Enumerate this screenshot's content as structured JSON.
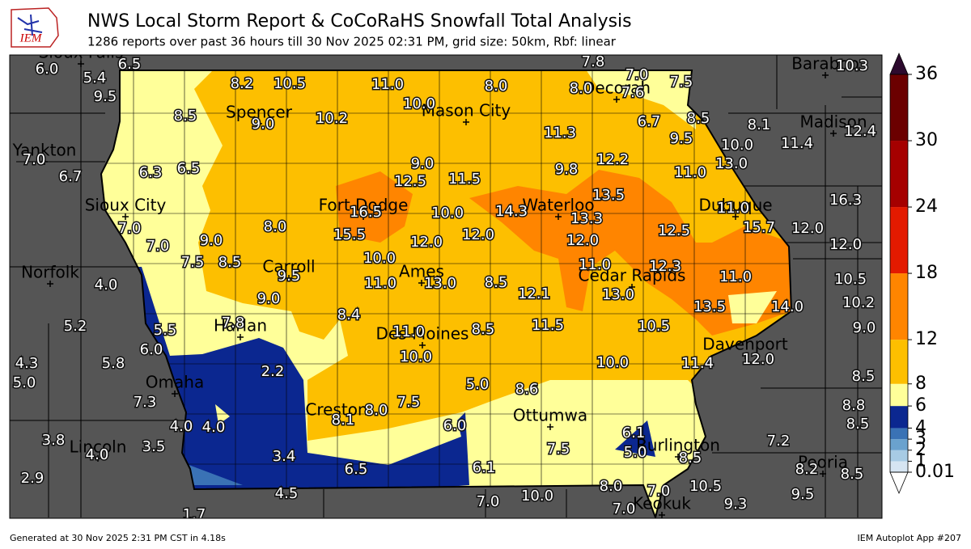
{
  "header": {
    "logo_text": "IEM",
    "title": "NWS Local Storm Report & CoCoRaHS Snowfall Total Analysis",
    "subtitle": "1286 reports over past 36 hours till 30 Nov 2025 02:31 PM, grid size: 50km, Rbf: linear"
  },
  "map": {
    "cities": [
      "Sioux Falls",
      "Decorah",
      "Baraboo",
      "Spencer",
      "Mason City",
      "Madison",
      "Yankton",
      "Sioux City",
      "Fort Dodge",
      "Waterloo",
      "Dubuque",
      "Norfolk",
      "Carroll",
      "Ames",
      "Cedar Rapids",
      "Harlan",
      "Des Moines",
      "Davenport",
      "Omaha",
      "Creston",
      "Ottumwa",
      "Burlington",
      "Lincoln",
      "Peoria",
      "Keokuk"
    ],
    "values": [
      6.0,
      6.5,
      5.4,
      9.5,
      8.2,
      10.5,
      11.0,
      8.0,
      7.8,
      7.0,
      8.0,
      7.6,
      7.5,
      10.3,
      8.5,
      9.0,
      10.2,
      10.0,
      11.3,
      6.7,
      8.5,
      9.5,
      8.1,
      10.0,
      11.4,
      12.4,
      7.0,
      6.7,
      6.3,
      6.5,
      9.0,
      12.5,
      11.5,
      9.8,
      12.2,
      11.0,
      13.0,
      16.3,
      16.5,
      10.0,
      14.3,
      13.3,
      13.5,
      11.0,
      15.7,
      12.0,
      12.0,
      7.0,
      8.0,
      15.5,
      12.0,
      12.0,
      12.0,
      12.5,
      7.0,
      9.0,
      7.5,
      8.5,
      10.0,
      11.0,
      13.0,
      8.5,
      11.0,
      12.3,
      9.5,
      12.1,
      13.0,
      11.0,
      10.5,
      4.0,
      9.0,
      13.5,
      14.0,
      10.2,
      8.4,
      5.2,
      5.5,
      7.8,
      11.0,
      8.5,
      11.5,
      10.5,
      9.0,
      6.0,
      10.0,
      10.0,
      11.4,
      12.0,
      4.3,
      5.8,
      2.2,
      5.0,
      5.0,
      8.6,
      8.5,
      7.3,
      7.5,
      8.0,
      8.1,
      8.8,
      4.0,
      4.0,
      6.0,
      8.5,
      6.1,
      3.8,
      3.5,
      5.0,
      7.2,
      7.5,
      4.0,
      3.4,
      8.5,
      6.5,
      6.1,
      8.2,
      8.5,
      2.9,
      8.0,
      10.5,
      4.5,
      7.0,
      10.0,
      9.5,
      7.0,
      7.0,
      9.3,
      1.7
    ],
    "value_labels": [
      "6.0",
      "6.5",
      "5.4",
      "9.5",
      "8.2",
      "10.5",
      "11.0",
      "8.0",
      "7.8",
      "7.0",
      "8.0",
      "7.6",
      "7.5",
      "10.3",
      "8.5",
      "9.0",
      "10.2",
      "10.0",
      "11.3",
      "6.7",
      "8.5",
      "9.5",
      "8.1",
      "10.0",
      "11.4",
      "12.4",
      "7.0",
      "6.7",
      "6.3",
      "6.5",
      "9.0",
      "12.5",
      "11.5",
      "9.8",
      "12.2",
      "11.0",
      "13.0",
      "16.3",
      "16.5",
      "10.0",
      "14.3",
      "13.3",
      "13.5",
      "11.0",
      "15.7",
      "12.0",
      "12.0",
      "7.0",
      "8.0",
      "15.5",
      "12.0",
      "12.0",
      "12.0",
      "12.5",
      "7.0",
      "9.0",
      "7.5",
      "8.5",
      "10.0",
      "11.0",
      "13.0",
      "8.5",
      "11.0",
      "12.3",
      "9.5",
      "12.1",
      "13.0",
      "11.0",
      "10.5",
      "4.0",
      "9.0",
      "13.5",
      "14.0",
      "10.2",
      "8.4",
      "5.2",
      "5.5",
      "7.8",
      "11.0",
      "8.5",
      "11.5",
      "10.5",
      "9.0",
      "6.0",
      "10.0",
      "10.0",
      "11.4",
      "12.0",
      "4.3",
      "5.8",
      "2.2",
      "5.0",
      "5.0",
      "8.6",
      "8.5",
      "7.3",
      "7.5",
      "8.0",
      "8.1",
      "8.8",
      "4.0",
      "4.0",
      "6.0",
      "8.5",
      "6.1",
      "3.8",
      "3.5",
      "5.0",
      "7.2",
      "7.5",
      "4.0",
      "3.4",
      "8.5",
      "6.5",
      "6.1",
      "8.2",
      "8.5",
      "2.9",
      "8.0",
      "10.5",
      "4.5",
      "7.0",
      "10.0",
      "9.5",
      "7.0",
      "7.0",
      "9.3",
      "1.7"
    ]
  },
  "colorbar": {
    "ticks": [
      0.01,
      1,
      2,
      3,
      4,
      6,
      8,
      12,
      18,
      24,
      30,
      36
    ],
    "colors": [
      "#d6e5f2",
      "#a7cbe4",
      "#6aa2ce",
      "#3a72b5",
      "#0b2790",
      "#ffff99",
      "#fdbf00",
      "#ff8500",
      "#e31a00",
      "#a50000",
      "#6b0000"
    ],
    "over_color": "#2d0a2e",
    "under_color": "#ffffff"
  },
  "footer": {
    "left": "Generated at 30 Nov 2025 2:31 PM CST in 4.18s",
    "right": "IEM Autoplot App #207"
  }
}
